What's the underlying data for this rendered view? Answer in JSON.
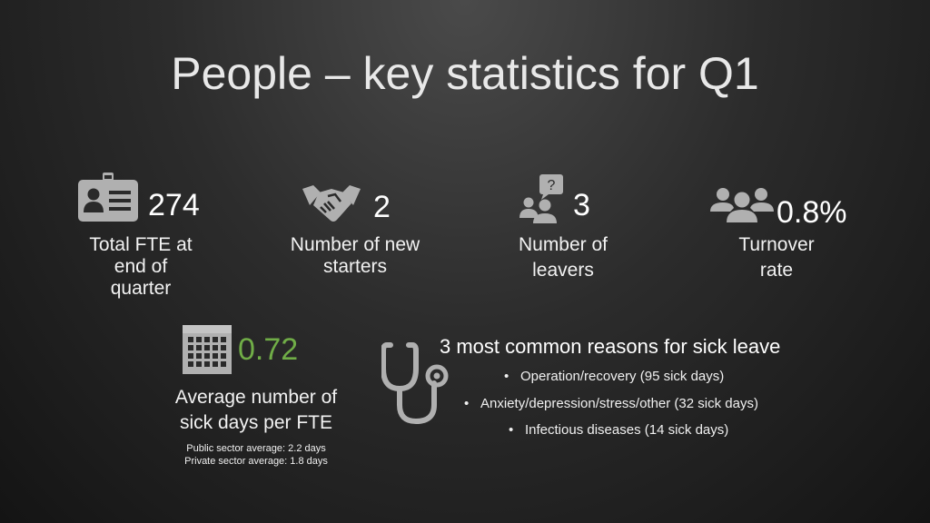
{
  "title": "People – key statistics for Q1",
  "stats": [
    {
      "value": "274",
      "label_lines": [
        "Total FTE at",
        "end of",
        "quarter"
      ],
      "icon": "id-badge-icon"
    },
    {
      "value": "2",
      "label_lines": [
        "Number of new",
        "starters"
      ],
      "icon": "handshake-icon"
    },
    {
      "value": "3",
      "label_lines": [
        "Number of",
        "leavers"
      ],
      "icon": "people-question-icon"
    },
    {
      "value": "0.8%",
      "label_lines": [
        "Turnover",
        "rate"
      ],
      "icon": "group-icon"
    }
  ],
  "sick_days": {
    "value": "0.72",
    "label_lines": [
      "Average number of",
      "sick days per FTE"
    ],
    "notes": [
      "Public sector average: 2.2 days",
      "Private sector average: 1.8 days"
    ],
    "icon": "calendar-icon",
    "value_color": "#70ad47"
  },
  "sick_reasons": {
    "title": "3 most common reasons for sick leave",
    "bullet": "•",
    "items": [
      "Operation/recovery (95 sick days)",
      "Anxiety/depression/stress/other (32 sick days)",
      "Infectious diseases (14 sick days)"
    ],
    "icon": "stethoscope-icon"
  },
  "colors": {
    "icon": "#b0b0b0",
    "accent": "#70ad47"
  }
}
